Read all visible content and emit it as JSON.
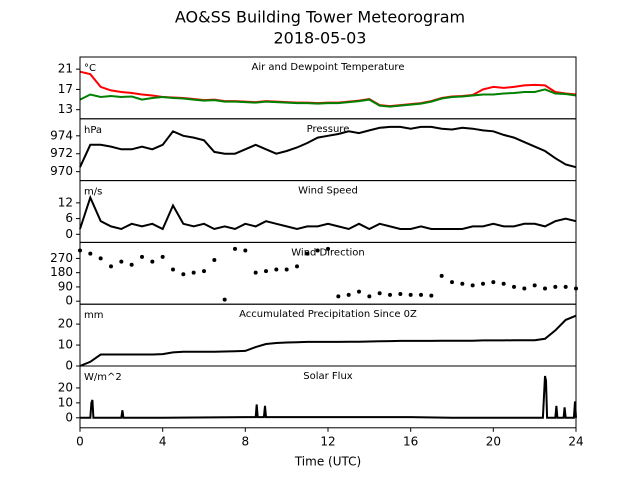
{
  "title": "AO&SS Building Tower Meteorogram",
  "subtitle": "2018-05-03",
  "chart_data": [
    {
      "type": "line",
      "title": "Air and Dewpoint Temperature",
      "unit": "°C",
      "x": [
        0,
        0.5,
        1,
        1.5,
        2,
        2.5,
        3,
        3.5,
        4,
        4.5,
        5,
        5.5,
        6,
        6.5,
        7,
        7.5,
        8,
        8.5,
        9,
        9.5,
        10,
        10.5,
        11,
        11.5,
        12,
        12.5,
        13,
        13.5,
        14,
        14.5,
        15,
        15.5,
        16,
        16.5,
        17,
        17.5,
        18,
        18.5,
        19,
        19.5,
        20,
        20.5,
        21,
        21.5,
        22,
        22.5,
        23,
        23.5,
        24
      ],
      "xlim": [
        0,
        24
      ],
      "ylim": [
        11.2,
        23.4
      ],
      "yticks": [
        13,
        17,
        21
      ],
      "series": [
        {
          "color": "#ff0000",
          "values": [
            20.5,
            20,
            17.5,
            16.8,
            16.5,
            16.3,
            16,
            15.8,
            15.5,
            15.4,
            15.3,
            15.1,
            14.9,
            15,
            14.7,
            14.7,
            14.6,
            14.5,
            14.7,
            14.6,
            14.5,
            14.4,
            14.4,
            14.3,
            14.4,
            14.4,
            14.6,
            14.8,
            15.1,
            13.9,
            13.7,
            13.9,
            14.1,
            14.3,
            14.7,
            15.3,
            15.6,
            15.7,
            15.9,
            17,
            17.5,
            17.3,
            17.5,
            17.8,
            17.9,
            17.8,
            16.5,
            16.2,
            16
          ]
        },
        {
          "color": "#008000",
          "values": [
            15,
            16,
            15.5,
            15.7,
            15.5,
            15.6,
            15,
            15.3,
            15.5,
            15.3,
            15.2,
            15,
            14.8,
            14.9,
            14.6,
            14.6,
            14.5,
            14.4,
            14.6,
            14.5,
            14.4,
            14.3,
            14.3,
            14.2,
            14.3,
            14.3,
            14.5,
            14.7,
            15,
            13.8,
            13.6,
            13.8,
            14,
            14.2,
            14.6,
            15.2,
            15.5,
            15.6,
            15.8,
            16,
            16,
            16.2,
            16.3,
            16.5,
            16.5,
            17,
            16.2,
            16.1,
            15.8
          ]
        }
      ]
    },
    {
      "type": "line",
      "title": "Pressure",
      "unit": "hPa",
      "x": [
        0,
        0.5,
        1,
        1.5,
        2,
        2.5,
        3,
        3.5,
        4,
        4.5,
        5,
        5.5,
        6,
        6.5,
        7,
        7.5,
        8,
        8.5,
        9,
        9.5,
        10,
        10.5,
        11,
        11.5,
        12,
        12.5,
        13,
        13.5,
        14,
        14.5,
        15,
        15.5,
        16,
        16.5,
        17,
        17.5,
        18,
        18.5,
        19,
        19.5,
        20,
        20.5,
        21,
        21.5,
        22,
        22.5,
        23,
        23.5,
        24
      ],
      "xlim": [
        0,
        24
      ],
      "ylim": [
        969,
        975.9
      ],
      "yticks": [
        970,
        972,
        974
      ],
      "series": [
        {
          "color": "#000000",
          "values": [
            970.5,
            973,
            973,
            972.8,
            972.5,
            972.5,
            972.8,
            972.5,
            973,
            974.5,
            974,
            973.8,
            973.5,
            972.2,
            972,
            972,
            972.5,
            973,
            972.5,
            972,
            972.3,
            972.7,
            973.2,
            973.8,
            974,
            974.2,
            974.5,
            974.3,
            974.6,
            974.9,
            975,
            975,
            974.8,
            975,
            975,
            974.8,
            974.7,
            974.9,
            974.8,
            974.6,
            974.5,
            974.1,
            973.8,
            973.3,
            972.8,
            972.3,
            971.5,
            970.8,
            970.5
          ]
        }
      ]
    },
    {
      "type": "line",
      "title": "Wind Speed",
      "unit": "m/s",
      "x": [
        0,
        0.5,
        1,
        1.5,
        2,
        2.5,
        3,
        3.5,
        4,
        4.5,
        5,
        5.5,
        6,
        6.5,
        7,
        7.5,
        8,
        8.5,
        9,
        9.5,
        10,
        10.5,
        11,
        11.5,
        12,
        12.5,
        13,
        13.5,
        14,
        14.5,
        15,
        15.5,
        16,
        16.5,
        17,
        17.5,
        18,
        18.5,
        19,
        19.5,
        20,
        20.5,
        21,
        21.5,
        22,
        22.5,
        23,
        23.5,
        24
      ],
      "xlim": [
        0,
        24
      ],
      "ylim": [
        -3.1,
        20.5
      ],
      "yticks": [
        0,
        6,
        12
      ],
      "series": [
        {
          "color": "#000000",
          "values": [
            2,
            14,
            5,
            3,
            2,
            4,
            3,
            4,
            2,
            11,
            4,
            3,
            4,
            2,
            3,
            2,
            4,
            3,
            5,
            4,
            3,
            2,
            3,
            3,
            4,
            3,
            2,
            4,
            2,
            4,
            3,
            2,
            2,
            3,
            2,
            2,
            2,
            2,
            3,
            3,
            4,
            3,
            3,
            4,
            4,
            3,
            5,
            6,
            5
          ]
        }
      ]
    },
    {
      "type": "scatter",
      "title": "Wind Direction",
      "x": [
        0,
        0.5,
        1,
        1.5,
        2,
        2.5,
        3,
        3.5,
        4,
        4.5,
        5,
        5.5,
        6,
        6.5,
        7,
        7.5,
        8,
        8.5,
        9,
        9.5,
        10,
        10.5,
        11,
        11.5,
        12,
        12.5,
        13,
        13.5,
        14,
        14.5,
        15,
        15.5,
        16,
        16.5,
        17,
        17.5,
        18,
        18.5,
        19,
        19.5,
        20,
        20.5,
        21,
        21.5,
        22,
        22.5,
        23,
        23.5,
        24
      ],
      "xlim": [
        0,
        24
      ],
      "ylim": [
        -19,
        371
      ],
      "yticks": [
        0,
        90,
        180,
        270
      ],
      "series": [
        {
          "color": "#000000",
          "values": [
            320,
            300,
            270,
            220,
            250,
            230,
            280,
            250,
            280,
            200,
            170,
            180,
            190,
            260,
            10,
            330,
            320,
            180,
            190,
            200,
            200,
            220,
            300,
            320,
            330,
            30,
            40,
            60,
            30,
            50,
            40,
            45,
            40,
            40,
            35,
            160,
            120,
            110,
            100,
            110,
            120,
            110,
            90,
            80,
            100,
            80,
            90,
            90,
            80
          ]
        }
      ]
    },
    {
      "type": "line",
      "title": "Accumulated Precipitation Since 0Z",
      "unit": "mm",
      "x": [
        0,
        0.5,
        1,
        1.5,
        2,
        2.5,
        3,
        3.5,
        4,
        4.5,
        5,
        5.5,
        6,
        6.5,
        7,
        7.5,
        8,
        8.5,
        9,
        9.5,
        10,
        10.5,
        11,
        11.5,
        12,
        12.5,
        13,
        13.5,
        14,
        14.5,
        15,
        15.5,
        16,
        16.5,
        17,
        17.5,
        18,
        18.5,
        19,
        19.5,
        20,
        20.5,
        21,
        21.5,
        22,
        22.5,
        23,
        23.5,
        24
      ],
      "xlim": [
        0,
        24
      ],
      "ylim": [
        0,
        29.5
      ],
      "yticks": [
        0,
        10,
        20
      ],
      "series": [
        {
          "color": "#000000",
          "values": [
            0,
            2,
            5.5,
            5.5,
            5.5,
            5.5,
            5.5,
            5.5,
            5.7,
            6.5,
            6.8,
            6.8,
            6.8,
            6.8,
            6.9,
            7,
            7.2,
            9,
            10.5,
            11,
            11.2,
            11.3,
            11.5,
            11.5,
            11.5,
            11.5,
            11.6,
            11.6,
            11.7,
            11.8,
            11.9,
            12,
            12,
            12,
            12,
            12.1,
            12.1,
            12.1,
            12.1,
            12.2,
            12.2,
            12.2,
            12.3,
            12.3,
            12.3,
            13,
            17,
            22,
            24
          ]
        }
      ]
    },
    {
      "type": "line",
      "title": "Solar Flux",
      "unit": "W/m^2",
      "x": [
        0,
        0.5,
        0.55,
        0.6,
        0.65,
        2,
        2.05,
        2.1,
        4,
        8,
        8.5,
        8.55,
        8.6,
        8.9,
        8.95,
        9,
        12,
        16,
        18,
        20,
        22.4,
        22.5,
        22.55,
        22.6,
        22.7,
        23,
        23.05,
        23.1,
        23.4,
        23.45,
        23.5,
        23.9,
        23.95,
        24
      ],
      "xlim": [
        0,
        24
      ],
      "ylim": [
        -6.7,
        34.7
      ],
      "yticks": [
        0,
        10,
        20
      ],
      "xticks": [
        0,
        4,
        8,
        12,
        16,
        20,
        24
      ],
      "xlabel": "Time (UTC)",
      "series": [
        {
          "color": "#000000",
          "values": [
            0,
            0,
            10,
            12,
            0,
            0,
            5,
            0,
            0,
            0.5,
            0.5,
            9,
            0.5,
            0.5,
            8,
            0.5,
            0.5,
            0.5,
            0,
            0,
            0,
            28,
            25,
            0,
            0,
            0,
            8,
            0,
            0,
            7,
            0,
            0,
            11,
            0
          ]
        }
      ]
    }
  ]
}
